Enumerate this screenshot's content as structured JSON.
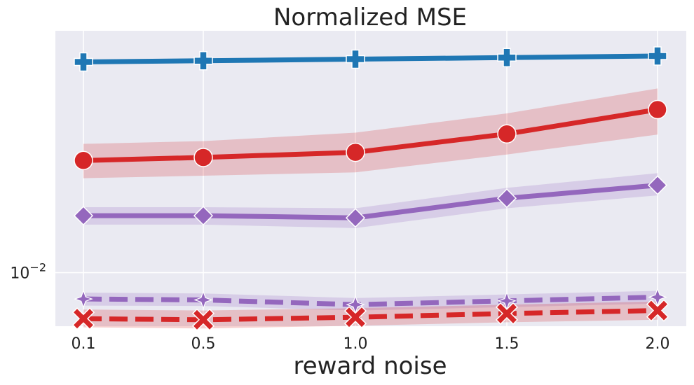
{
  "chart_data": {
    "type": "line",
    "title": "Normalized MSE",
    "xlabel": "reward noise",
    "ylabel": "",
    "yscale": "log",
    "x": [
      0.1,
      0.5,
      1.0,
      1.5,
      2.0
    ],
    "x_tick_labels": [
      "0.1",
      "0.5",
      "1.0",
      "1.5",
      "2.0"
    ],
    "ylim": [
      0.0071,
      0.047
    ],
    "y_tick": {
      "value": 0.01,
      "base": "10",
      "exponent": "−2"
    },
    "grid": true,
    "background": "#eaeaf2",
    "series": [
      {
        "color": "#1f77b4",
        "linestyle": "solid",
        "marker": "plus",
        "values": [
          0.0385,
          0.0388,
          0.0392,
          0.0396,
          0.04
        ],
        "band_low": [
          0.038,
          0.0383,
          0.0387,
          0.0391,
          0.0395
        ],
        "band_high": [
          0.0391,
          0.0394,
          0.0398,
          0.0402,
          0.0406
        ]
      },
      {
        "color": "#d62728",
        "linestyle": "solid",
        "marker": "circle",
        "values": [
          0.0205,
          0.0209,
          0.0216,
          0.0243,
          0.0284
        ],
        "band_low": [
          0.0183,
          0.0186,
          0.019,
          0.0213,
          0.0242
        ],
        "band_high": [
          0.0228,
          0.0232,
          0.0245,
          0.0277,
          0.0325
        ]
      },
      {
        "color": "#9467bd",
        "linestyle": "solid",
        "marker": "diamond",
        "values": [
          0.0144,
          0.0144,
          0.0142,
          0.0161,
          0.0175
        ],
        "band_low": [
          0.0136,
          0.0136,
          0.0133,
          0.0151,
          0.0164
        ],
        "band_high": [
          0.0152,
          0.0152,
          0.0151,
          0.0172,
          0.0189
        ]
      },
      {
        "color": "#9467bd",
        "linestyle": "dashed",
        "marker": "star",
        "values": [
          0.00845,
          0.0084,
          0.00815,
          0.00835,
          0.00855
        ],
        "band_low": [
          0.0081,
          0.00808,
          0.00785,
          0.00802,
          0.0082
        ],
        "band_high": [
          0.0088,
          0.00875,
          0.0085,
          0.0087,
          0.0089
        ]
      },
      {
        "color": "#d62728",
        "linestyle": "dashed",
        "marker": "x",
        "values": [
          0.00745,
          0.0074,
          0.00752,
          0.0077,
          0.00785
        ],
        "band_low": [
          0.00705,
          0.007,
          0.00712,
          0.00728,
          0.0074
        ],
        "band_high": [
          0.0079,
          0.00785,
          0.00797,
          0.00815,
          0.00832
        ]
      }
    ]
  }
}
